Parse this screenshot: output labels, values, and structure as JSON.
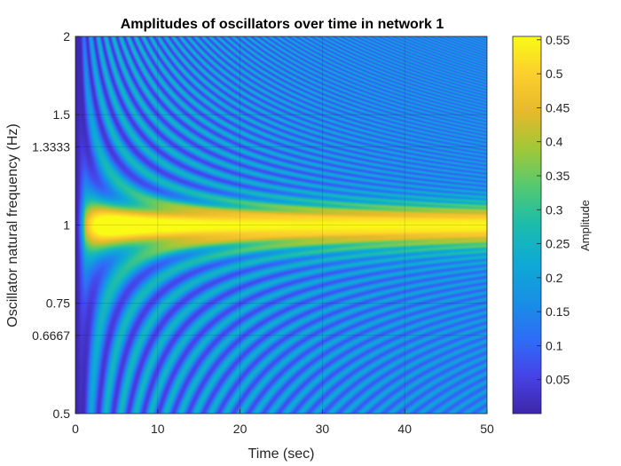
{
  "chart_data": {
    "type": "heatmap",
    "title": "Amplitudes of oscillators over time in network 1",
    "xlabel": "Time (sec)",
    "ylabel": "Oscillator natural frequency (Hz)",
    "xlim": [
      0,
      50
    ],
    "ylim": [
      0.5,
      2
    ],
    "yscale": "log",
    "x_ticks": [
      0,
      10,
      20,
      30,
      40,
      50
    ],
    "x_tick_labels": [
      "0",
      "10",
      "20",
      "30",
      "40",
      "50"
    ],
    "y_ticks": [
      0.5,
      0.6667,
      0.75,
      1,
      1.3333,
      1.5,
      2
    ],
    "y_tick_labels": [
      "0.5",
      "0.6667",
      "0.75",
      "1",
      "1.3333",
      "1.5",
      "2"
    ],
    "grid": true,
    "colormap": "parula",
    "colorbar": {
      "label": "Amplitude",
      "range": [
        0,
        0.555
      ],
      "ticks": [
        0.05,
        0.1,
        0.15,
        0.2,
        0.25,
        0.3,
        0.35,
        0.4,
        0.45,
        0.5,
        0.55
      ],
      "tick_labels": [
        "0.05",
        "0.1",
        "0.15",
        "0.2",
        "0.25",
        "0.3",
        "0.35",
        "0.4",
        "0.45",
        "0.5",
        "0.55"
      ]
    },
    "stimulus_frequency_hz": 1,
    "steady_state_peak_amplitude": 0.55,
    "background_amplitude": 0.15
  }
}
